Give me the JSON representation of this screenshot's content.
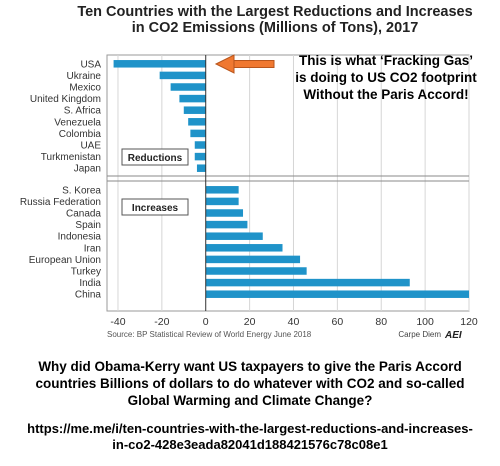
{
  "chart_data": {
    "type": "bar",
    "orientation": "horizontal",
    "title": "Ten Countries with the Largest Reductions and Increases in CO2 Emissions (Millions of Tons), 2017",
    "groups": [
      {
        "label": "Reductions",
        "categories": [
          "USA",
          "Ukraine",
          "Mexico",
          "United Kingdom",
          "S. Africa",
          "Venezuela",
          "Colombia",
          "UAE",
          "Turkmenistan",
          "Japan"
        ],
        "values": [
          -42,
          -21,
          -16,
          -12,
          -10,
          -8,
          -7,
          -5,
          -5,
          -4
        ]
      },
      {
        "label": "Increases",
        "categories": [
          "S. Korea",
          "Russia Federation",
          "Canada",
          "Spain",
          "Indonesia",
          "Iran",
          "European Union",
          "Turkey",
          "India",
          "China"
        ],
        "values": [
          15,
          15,
          17,
          19,
          26,
          35,
          43,
          46,
          93,
          120
        ]
      }
    ],
    "xlim": [
      -45,
      120
    ],
    "xticks": [
      -40,
      -20,
      0,
      20,
      40,
      60,
      80,
      100,
      120
    ],
    "grid": true,
    "bar_color": "#1f93c9",
    "source": "Source: BP Statistical Review of World Energy June 2018",
    "credit": "Carpe Diem",
    "logo_text": "AEI"
  },
  "annotation": {
    "lines": [
      "This is what ‘Fracking Gas’",
      "is doing to US CO2 footprint",
      "Without the Paris Accord!"
    ],
    "arrow_color": "#f07830"
  },
  "caption": {
    "question_lines": [
      "Why did Obama-Kerry want US taxpayers to give the Paris Accord",
      "countries Billions of dollars to do whatever with CO2 and so-called",
      "Global Warming and Climate Change?"
    ],
    "link_lines": [
      "https://me.me/i/ten-countries-with-the-largest-reductions-and-increases-",
      "in-co2-428e3eada82041d188421576c78c08e1"
    ]
  }
}
